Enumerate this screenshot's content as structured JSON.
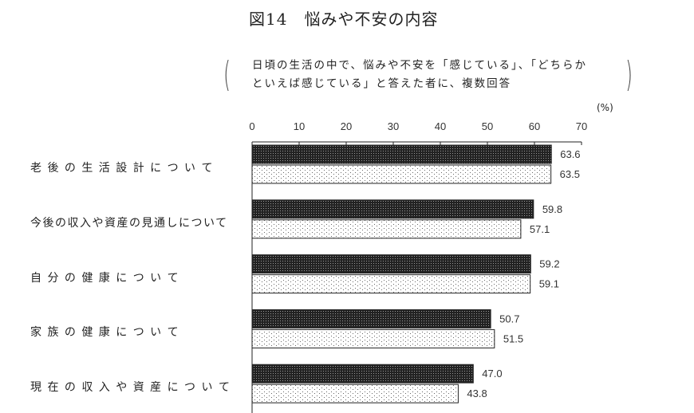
{
  "chart_data": {
    "type": "bar",
    "orientation": "horizontal",
    "title": "図14　悩みや不安の内容",
    "note_lines": [
      "日頃の生活の中で、悩みや不安を「感じている」、「どちらか",
      "といえば感じている」と答えた者に、複数回答"
    ],
    "unit": "(%)",
    "xlim": [
      0,
      70
    ],
    "ticks": [
      0,
      10,
      20,
      30,
      40,
      50,
      60,
      70
    ],
    "grid": false,
    "categories": [
      "老 後 の 生 活 設 計 に つ い て",
      "今後の収入や資産の見通しについて",
      "自 分 の 健 康 に つ い て",
      "家 族 の 健 康 に つ い て",
      "現 在 の 収 入 や 資 産 に つ い て"
    ],
    "series": [
      {
        "values": [
          63.6,
          59.8,
          59.2,
          50.7,
          47.0
        ],
        "labels": [
          "63.6",
          "59.8",
          "59.2",
          "50.7",
          "47.0"
        ],
        "fill": "dark-dotted"
      },
      {
        "values": [
          63.5,
          57.1,
          59.1,
          51.5,
          43.8
        ],
        "labels": [
          "63.5",
          "57.1",
          "59.1",
          "51.5",
          "43.8"
        ],
        "fill": "light-dotted"
      }
    ]
  }
}
